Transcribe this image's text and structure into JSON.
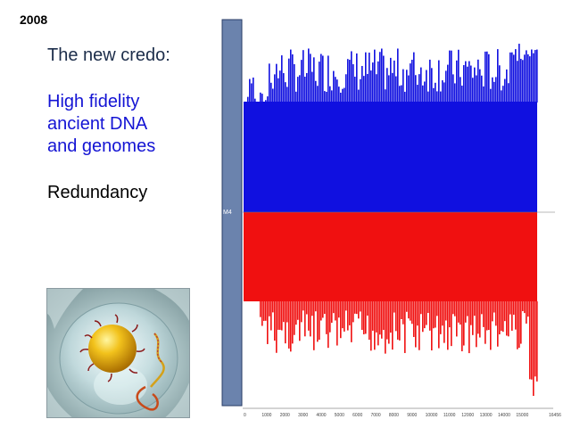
{
  "slide": {
    "year": "2008",
    "heading": "The new credo:",
    "highlight_lines": [
      "High fidelity",
      "ancient DNA",
      "and genomes"
    ],
    "footer_line": "Redundancy"
  },
  "colors": {
    "heading": "#1c2d4a",
    "highlight": "#1414d4",
    "forward_strand": "#1010e0",
    "reverse_strand": "#f01010",
    "sample_bar": "#6b83ad"
  },
  "coverage_plot": {
    "sample_label": "M4",
    "x_ticks": [
      "0",
      "1000",
      "2000",
      "3000",
      "4000",
      "5000",
      "6000",
      "7000",
      "8000",
      "9000",
      "10000",
      "11000",
      "12000",
      "13000",
      "14000",
      "15000",
      "16456"
    ]
  },
  "illustration": {
    "icon": "dna-bead-illustration"
  }
}
